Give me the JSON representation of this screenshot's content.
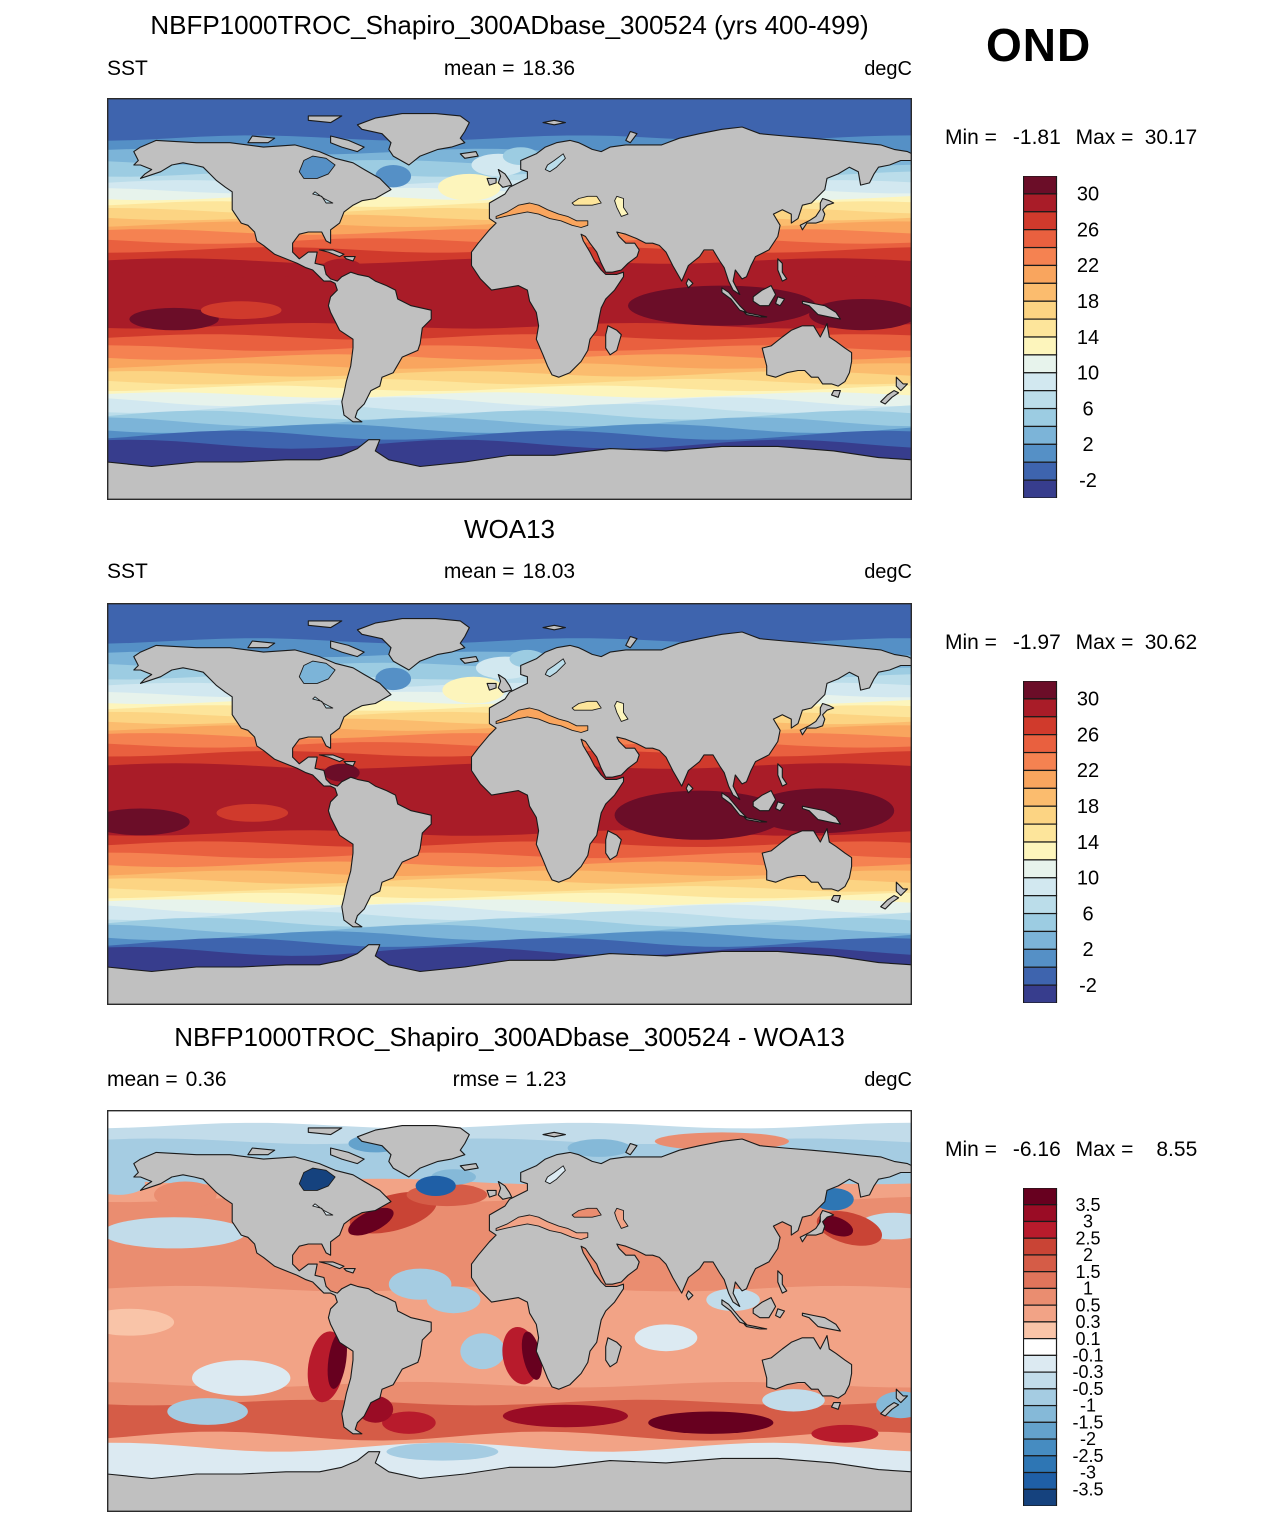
{
  "figure": {
    "season": "OND",
    "panels": [
      {
        "title": "NBFP1000TROC_Shapiro_300ADbase_300524 (yrs 400-499)",
        "left_label": "SST",
        "left_value": "",
        "mid_label": "mean =",
        "mid_value": "18.36",
        "units": "degC",
        "min_label": "Min =",
        "min_value": "-1.81",
        "max_label": "Max =",
        "max_value": "30.17"
      },
      {
        "title": "WOA13",
        "left_label": "SST",
        "left_value": "",
        "mid_label": "mean =",
        "mid_value": "18.03",
        "units": "degC",
        "min_label": "Min =",
        "min_value": "-1.97",
        "max_label": "Max =",
        "max_value": "30.62"
      },
      {
        "title": "NBFP1000TROC_Shapiro_300ADbase_300524 - WOA13",
        "left_label": "mean =",
        "left_value": "0.36",
        "mid_label": "rmse =",
        "mid_value": "1.23",
        "units": "degC",
        "min_label": "Min =",
        "min_value": "-6.16",
        "max_label": "Max =",
        "max_value": "8.55"
      }
    ],
    "land_color": "#c0c0c0",
    "coast_color": "#1a1a1a"
  },
  "chart_data": [
    {
      "type": "heatmap",
      "title": "NBFP1000TROC_Shapiro_300ADbase_300524 (yrs 400-499)",
      "variable": "SST",
      "units": "degC",
      "stats": {
        "mean": 18.36,
        "min": -1.81,
        "max": 30.17
      },
      "levels": [
        -2,
        0,
        2,
        4,
        6,
        8,
        10,
        12,
        14,
        16,
        18,
        20,
        22,
        24,
        26,
        28,
        30
      ],
      "palette": [
        "#6B0D28",
        "#A91C28",
        "#D03A2C",
        "#E9603F",
        "#F58251",
        "#F9A55E",
        "#FBBC6E",
        "#FCD483",
        "#FDE59B",
        "#FDF5BC",
        "#E7F3EC",
        "#D2E8F0",
        "#BBDDEA",
        "#9CCCE2",
        "#7CB4D8",
        "#5590C6",
        "#3E64AE",
        "#373D8D"
      ],
      "tick_labels": [
        "30",
        "26",
        "22",
        "18",
        "14",
        "10",
        "6",
        "2",
        "-2"
      ],
      "zonal_bands": [
        {
          "from": 90,
          "value": -1
        },
        {
          "from": 72,
          "value": 0.5
        },
        {
          "from": 66,
          "value": 3
        },
        {
          "from": 61,
          "value": 5
        },
        {
          "from": 56,
          "value": 7
        },
        {
          "from": 52,
          "value": 9
        },
        {
          "from": 48.5,
          "value": 11
        },
        {
          "from": 45.5,
          "value": 13
        },
        {
          "from": 42.5,
          "value": 15
        },
        {
          "from": 39.5,
          "value": 17
        },
        {
          "from": 36.5,
          "value": 19
        },
        {
          "from": 33.5,
          "value": 21
        },
        {
          "from": 30,
          "value": 23
        },
        {
          "from": 26,
          "value": 25
        },
        {
          "from": 22,
          "value": 27
        },
        {
          "from": 17,
          "value": 29
        },
        {
          "from": 11,
          "value": 29.3
        },
        {
          "from": -12,
          "value": 27
        },
        {
          "from": -17,
          "value": 25
        },
        {
          "from": -22,
          "value": 23
        },
        {
          "from": -26,
          "value": 21
        },
        {
          "from": -30,
          "value": 19
        },
        {
          "from": -33.5,
          "value": 17
        },
        {
          "from": -37,
          "value": 15
        },
        {
          "from": -40,
          "value": 13
        },
        {
          "from": -43,
          "value": 11
        },
        {
          "from": -46,
          "value": 9
        },
        {
          "from": -49,
          "value": 7
        },
        {
          "from": -52,
          "value": 5
        },
        {
          "from": -55,
          "value": 3
        },
        {
          "from": -58,
          "value": 1
        },
        {
          "from": -61,
          "value": -0.5
        },
        {
          "from": -65,
          "value": -2.5
        }
      ],
      "patches": [
        {
          "lon": 95,
          "lat": -3,
          "rlon": 42,
          "rlat": 9,
          "value": 30.5
        },
        {
          "lon": 158,
          "lat": -7,
          "rlon": 24,
          "rlat": 7,
          "value": 30.5
        },
        {
          "lon": -150,
          "lat": -9,
          "rlon": 20,
          "rlat": 5,
          "value": 30.5
        },
        {
          "lon": -75,
          "lat": 14,
          "rlon": 9,
          "rlat": 4,
          "value": 29.3
        },
        {
          "lon": -120,
          "lat": -5,
          "rlon": 18,
          "rlat": 4,
          "value": 27
        },
        {
          "lon": -18,
          "lat": 50,
          "rlon": 14,
          "rlat": 6,
          "value": 13
        },
        {
          "lon": -5,
          "lat": 60,
          "rlon": 12,
          "rlat": 5,
          "value": 8
        },
        {
          "lon": 5,
          "lat": 64,
          "rlon": 8,
          "rlat": 4,
          "value": 5
        },
        {
          "lon": -52,
          "lat": 55,
          "rlon": 8,
          "rlat": 5,
          "value": 1
        }
      ],
      "features": {
        "mediterranean": 20,
        "black_sea": 15,
        "caspian": 13,
        "hudson": 1.5,
        "baltic": 7,
        "great_lakes": 6
      }
    },
    {
      "type": "heatmap",
      "title": "WOA13",
      "variable": "SST",
      "units": "degC",
      "stats": {
        "mean": 18.03,
        "min": -1.97,
        "max": 30.62
      },
      "levels": [
        -2,
        0,
        2,
        4,
        6,
        8,
        10,
        12,
        14,
        16,
        18,
        20,
        22,
        24,
        26,
        28,
        30
      ],
      "palette": [
        "#6B0D28",
        "#A91C28",
        "#D03A2C",
        "#E9603F",
        "#F58251",
        "#F9A55E",
        "#FBBC6E",
        "#FCD483",
        "#FDE59B",
        "#FDF5BC",
        "#E7F3EC",
        "#D2E8F0",
        "#BBDDEA",
        "#9CCCE2",
        "#7CB4D8",
        "#5590C6",
        "#3E64AE",
        "#373D8D"
      ],
      "tick_labels": [
        "30",
        "26",
        "22",
        "18",
        "14",
        "10",
        "6",
        "2",
        "-2"
      ],
      "zonal_bands": [
        {
          "from": 90,
          "value": -1
        },
        {
          "from": 73,
          "value": 0.5
        },
        {
          "from": 67,
          "value": 3
        },
        {
          "from": 62,
          "value": 5
        },
        {
          "from": 57,
          "value": 7
        },
        {
          "from": 53,
          "value": 9
        },
        {
          "from": 49,
          "value": 11
        },
        {
          "from": 46,
          "value": 13
        },
        {
          "from": 43,
          "value": 15
        },
        {
          "from": 40,
          "value": 17
        },
        {
          "from": 37,
          "value": 19
        },
        {
          "from": 34,
          "value": 21
        },
        {
          "from": 30.5,
          "value": 23
        },
        {
          "from": 26.5,
          "value": 25
        },
        {
          "from": 22.5,
          "value": 27
        },
        {
          "from": 17,
          "value": 29
        },
        {
          "from": 12,
          "value": 29.3
        },
        {
          "from": -13,
          "value": 27
        },
        {
          "from": -18,
          "value": 25
        },
        {
          "from": -23,
          "value": 23
        },
        {
          "from": -27,
          "value": 21
        },
        {
          "from": -31,
          "value": 19
        },
        {
          "from": -34.5,
          "value": 17
        },
        {
          "from": -38,
          "value": 15
        },
        {
          "from": -41,
          "value": 13
        },
        {
          "from": -44,
          "value": 11
        },
        {
          "from": -47,
          "value": 9
        },
        {
          "from": -50,
          "value": 7
        },
        {
          "from": -53,
          "value": 5
        },
        {
          "from": -56,
          "value": 3
        },
        {
          "from": -59,
          "value": 1
        },
        {
          "from": -62,
          "value": -0.5
        },
        {
          "from": -66,
          "value": -2.5
        }
      ],
      "patches": [
        {
          "lon": 85,
          "lat": -5,
          "rlon": 38,
          "rlat": 11,
          "value": 30.5
        },
        {
          "lon": 140,
          "lat": -3,
          "rlon": 32,
          "rlat": 10,
          "value": 30.5
        },
        {
          "lon": -165,
          "lat": -8,
          "rlon": 22,
          "rlat": 6,
          "value": 30.5
        },
        {
          "lon": -75,
          "lat": 14,
          "rlon": 8,
          "rlat": 4,
          "value": 30.5
        },
        {
          "lon": -115,
          "lat": -4,
          "rlon": 16,
          "rlat": 4,
          "value": 27
        },
        {
          "lon": -16,
          "lat": 51,
          "rlon": 14,
          "rlat": 6,
          "value": 13
        },
        {
          "lon": -2,
          "lat": 61,
          "rlon": 13,
          "rlat": 5,
          "value": 8
        },
        {
          "lon": 8,
          "lat": 65,
          "rlon": 8,
          "rlat": 4,
          "value": 5
        },
        {
          "lon": -52,
          "lat": 56,
          "rlon": 8,
          "rlat": 5,
          "value": 1
        }
      ],
      "features": {
        "mediterranean": 20,
        "black_sea": 15,
        "caspian": 12,
        "hudson": 2.5,
        "baltic": 7,
        "great_lakes": 6
      }
    },
    {
      "type": "heatmap",
      "title": "NBFP1000TROC_Shapiro_300ADbase_300524 - WOA13",
      "variable": "SST difference",
      "units": "degC",
      "stats": {
        "mean": 0.36,
        "rmse": 1.23,
        "min": -6.16,
        "max": 8.55
      },
      "levels": [
        -3.5,
        -3,
        -2.5,
        -2,
        -1.5,
        -1,
        -0.5,
        -0.3,
        -0.1,
        0.1,
        0.3,
        0.5,
        1,
        1.5,
        2,
        2.5,
        3,
        3.5
      ],
      "palette": [
        "#67001F",
        "#9A0C25",
        "#B81B2C",
        "#C94435",
        "#D55C47",
        "#E0745B",
        "#EA8D70",
        "#F2A386",
        "#F9C4A8",
        "#FFFFFF",
        "#DCEAF2",
        "#C2DCEA",
        "#A5CCE2",
        "#85B9D8",
        "#64A2CC",
        "#468CC1",
        "#2E76B4",
        "#1F5FA6",
        "#15427E"
      ],
      "tick_labels": [
        "3.5",
        "3",
        "2.5",
        "2",
        "1.5",
        "1",
        "0.5",
        "0.3",
        "0.1",
        "-0.1",
        "-0.3",
        "-0.5",
        "-1",
        "-1.5",
        "-2",
        "-2.5",
        "-3",
        "-3.5"
      ],
      "zonal_bands": [
        {
          "from": 90,
          "value": 0
        },
        {
          "from": 83,
          "value": -0.4
        },
        {
          "from": 76,
          "value": -0.8
        },
        {
          "from": 58,
          "value": 0.4
        },
        {
          "from": 50,
          "value": 0.6
        },
        {
          "from": 10,
          "value": 0.4
        },
        {
          "from": -33,
          "value": 0.9
        },
        {
          "from": -41,
          "value": 1.7
        },
        {
          "from": -56,
          "value": 0.4
        },
        {
          "from": -61,
          "value": -0.2
        }
      ],
      "patches": [
        {
          "lon": -150,
          "lat": 35,
          "rlon": 32,
          "rlat": 7,
          "value": -0.4
        },
        {
          "lon": 172,
          "lat": 38,
          "rlon": 16,
          "rlat": 6,
          "value": -0.4
        },
        {
          "lon": -145,
          "lat": 52,
          "rlon": 14,
          "rlat": 6,
          "value": 0.8
        },
        {
          "lon": -175,
          "lat": 57,
          "rlon": 12,
          "rlat": 5,
          "value": -0.8
        },
        {
          "lon": 95,
          "lat": 76,
          "rlon": 30,
          "rlat": 4,
          "value": 0.8
        },
        {
          "lon": -60,
          "lat": 75,
          "rlon": 12,
          "rlat": 4,
          "value": -1.7
        },
        {
          "lon": 40,
          "lat": 73,
          "rlon": 14,
          "rlat": 4,
          "value": -1.2
        },
        {
          "lon": -52,
          "lat": 44,
          "rlon": 20,
          "rlat": 8,
          "rot": -15,
          "value": 2.2
        },
        {
          "lon": -62,
          "lat": 40,
          "rlon": 11,
          "rlat": 4.5,
          "rot": -25,
          "value": 3.8
        },
        {
          "lon": -28,
          "lat": 52,
          "rlon": 18,
          "rlat": 5,
          "value": 1.7
        },
        {
          "lon": -25,
          "lat": 60,
          "rlon": 10,
          "rlat": 3.5,
          "value": -1.2
        },
        {
          "lon": -33,
          "lat": 56,
          "rlon": 9,
          "rlat": 4.5,
          "value": -3.3
        },
        {
          "lon": 152,
          "lat": 37,
          "rlon": 15,
          "rlat": 7,
          "rot": 15,
          "value": 2.2
        },
        {
          "lon": 146,
          "lat": 38,
          "rlon": 8,
          "rlat": 4,
          "rot": 20,
          "value": 3.8
        },
        {
          "lon": 145,
          "lat": 50,
          "rlon": 9,
          "rlat": 5,
          "value": -2.7
        },
        {
          "lon": -40,
          "lat": 12,
          "rlon": 14,
          "rlat": 7,
          "value": -0.7
        },
        {
          "lon": -25,
          "lat": 5,
          "rlon": 12,
          "rlat": 6,
          "value": -0.7
        },
        {
          "lon": -12,
          "lat": -18,
          "rlon": 10,
          "rlat": 8,
          "value": -0.7
        },
        {
          "lon": 70,
          "lat": -12,
          "rlon": 14,
          "rlat": 6,
          "value": -0.2
        },
        {
          "lon": 100,
          "lat": 5,
          "rlon": 12,
          "rlat": 5,
          "value": -0.4
        },
        {
          "lon": -170,
          "lat": -5,
          "rlon": 20,
          "rlat": 6,
          "value": 0.2
        },
        {
          "lon": -120,
          "lat": -30,
          "rlon": 22,
          "rlat": 8,
          "value": -0.2
        },
        {
          "lon": -135,
          "lat": -45,
          "rlon": 18,
          "rlat": 6,
          "value": -0.7
        },
        {
          "lon": 175,
          "lat": -42,
          "rlon": 11,
          "rlat": 6,
          "value": -1.2
        },
        {
          "lon": 127,
          "lat": -40,
          "rlon": 14,
          "rlat": 5,
          "value": -0.4
        },
        {
          "lon": -82,
          "lat": -25,
          "rlon": 8,
          "rlat": 16,
          "rot": 8,
          "value": 2.7
        },
        {
          "lon": -77,
          "lat": -22,
          "rlon": 4,
          "rlat": 13,
          "rot": 8,
          "value": 3.8
        },
        {
          "lon": 5,
          "lat": -20,
          "rlon": 8,
          "rlat": 13,
          "rot": -10,
          "value": 2.7
        },
        {
          "lon": 10,
          "lat": -20,
          "rlon": 4,
          "rlat": 11,
          "rot": -12,
          "value": 3.8
        },
        {
          "lon": 25,
          "lat": -47,
          "rlon": 28,
          "rlat": 5,
          "value": 3.2
        },
        {
          "lon": 90,
          "lat": -50,
          "rlon": 28,
          "rlat": 5,
          "value": 3.8
        },
        {
          "lon": -45,
          "lat": -50,
          "rlon": 12,
          "rlat": 5,
          "value": 2.7
        },
        {
          "lon": -60,
          "lat": -44,
          "rlon": 8,
          "rlat": 6,
          "value": 3.2
        },
        {
          "lon": 150,
          "lat": -55,
          "rlon": 15,
          "rlat": 4,
          "value": 2.7
        },
        {
          "lon": -30,
          "lat": -63,
          "rlon": 25,
          "rlat": 4,
          "value": -0.7
        },
        {
          "lon": 100,
          "lat": -64,
          "rlon": 30,
          "rlat": 3,
          "value": -0.2
        }
      ],
      "features": {
        "mediterranean": 0.4,
        "black_sea": 0.6,
        "caspian": 0.4,
        "hudson": -3.6,
        "baltic": -0.2,
        "great_lakes": -0.2
      }
    }
  ]
}
